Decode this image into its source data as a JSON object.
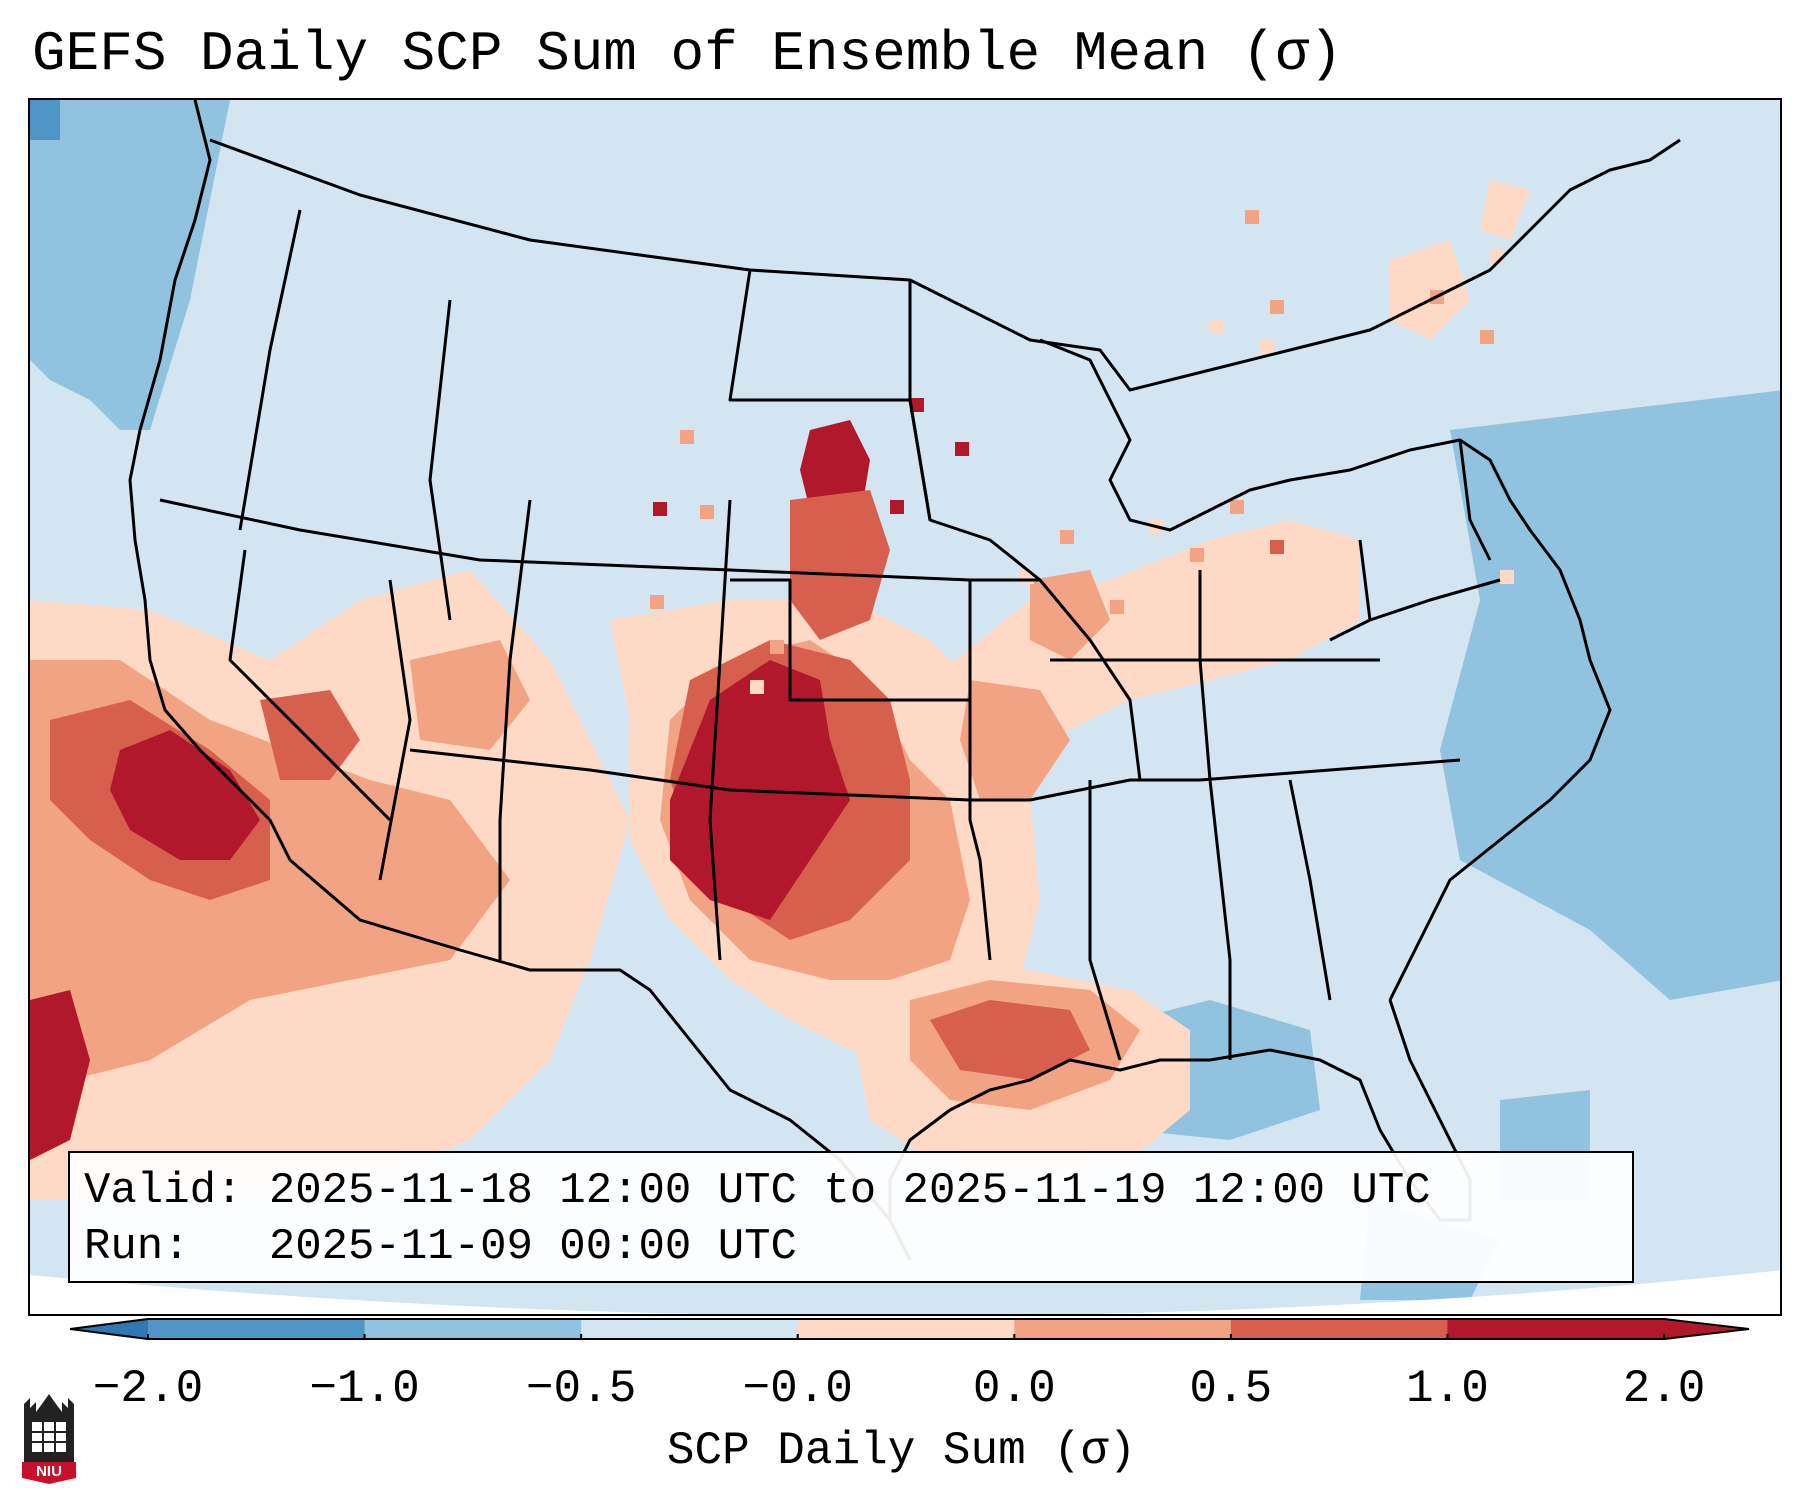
{
  "title": "GEFS Daily SCP Sum of Ensemble Mean (σ)",
  "info": {
    "valid_label": "Valid:",
    "valid_value": "2025-11-18 12:00 UTC to 2025-11-19 12:00 UTC",
    "run_label": "Run:",
    "run_value": "2025-11-09 00:00 UTC"
  },
  "colorbar": {
    "label": "SCP Daily Sum (σ)",
    "ticks": [
      "−2.0",
      "−1.0",
      "−0.5",
      "−0.0",
      "0.0",
      "0.5",
      "1.0",
      "2.0"
    ],
    "colors": [
      "#2f78b4",
      "#4f96c7",
      "#91c2df",
      "#d2e5f0",
      "#fdd9c6",
      "#f2a383",
      "#d6604d",
      "#b2182b"
    ],
    "extend": "both"
  },
  "map": {
    "projection": "Lambert Conformal Conic",
    "region": "Contiguous United States",
    "background_color": "#d2e5f0",
    "outline_color": "#000000"
  },
  "logo": {
    "text": "NIU",
    "color": "#c8102e"
  }
}
